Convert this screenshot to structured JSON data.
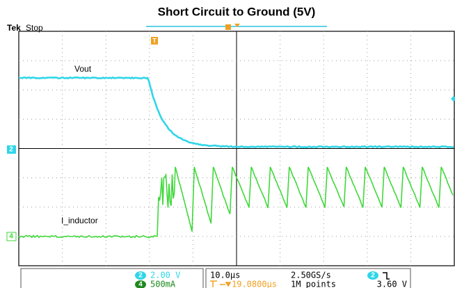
{
  "header": {
    "title": "Short Circuit to Ground (5V)",
    "brand": "Tek",
    "state": "Stop"
  },
  "traces": [
    {
      "channel": "2",
      "label": "Vout"
    },
    {
      "channel": "4",
      "label": "I_inductor"
    }
  ],
  "trigger_marker": "T",
  "status": {
    "ch2": {
      "badge": "2",
      "scale": "2.00 V"
    },
    "ch4": {
      "badge": "4",
      "scale": "500mA"
    },
    "timebase": "10.0µs",
    "sample_rate": "2.50GS/s",
    "trigger_position": "19.0800µs",
    "record_length": "1M points",
    "trigger_source": "2",
    "trigger_level": "3.60 V"
  }
}
